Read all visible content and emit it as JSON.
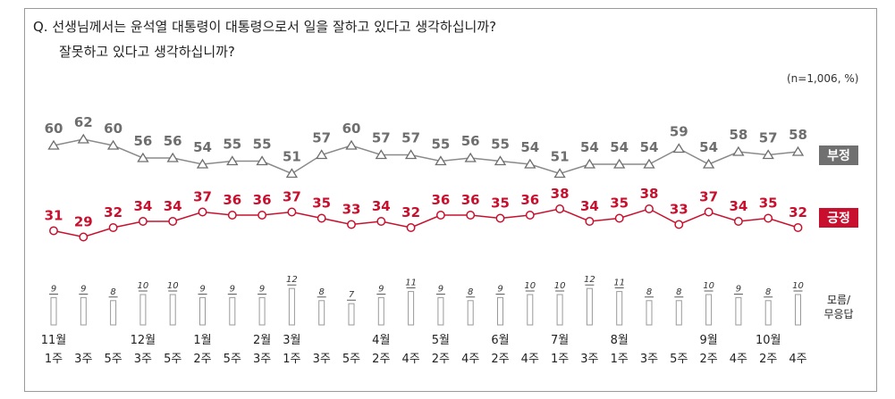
{
  "question": {
    "line1": "Q. 선생님께서는 윤석열 대통령이 대통령으로서 일을 잘하고 있다고 생각하십니까?",
    "line2": "잘못하고 있다고 생각하십니까?"
  },
  "note": "(n=1,006, %)",
  "colors": {
    "negative": "#8a8a8a",
    "positive": "#c8102e",
    "negative_badge": "#707070",
    "positive_badge": "#c8102e"
  },
  "chart_data": {
    "type": "line",
    "categories": [
      [
        "11월",
        "1주"
      ],
      [
        "",
        "3주"
      ],
      [
        "",
        "5주"
      ],
      [
        "12월",
        "3주"
      ],
      [
        "",
        "5주"
      ],
      [
        "1월",
        "2주"
      ],
      [
        "",
        "5주"
      ],
      [
        "2월",
        "3주"
      ],
      [
        "3월",
        "1주"
      ],
      [
        "",
        "3주"
      ],
      [
        "",
        "5주"
      ],
      [
        "4월",
        "2주"
      ],
      [
        "",
        "4주"
      ],
      [
        "5월",
        "2주"
      ],
      [
        "",
        "4주"
      ],
      [
        "6월",
        "2주"
      ],
      [
        "",
        "4주"
      ],
      [
        "7월",
        "1주"
      ],
      [
        "",
        "3주"
      ],
      [
        "8월",
        "1주"
      ],
      [
        "",
        "3주"
      ],
      [
        "",
        "5주"
      ],
      [
        "9월",
        "2주"
      ],
      [
        "",
        "4주"
      ],
      [
        "10월",
        "2주"
      ],
      [
        "",
        "4주"
      ]
    ],
    "series": [
      {
        "name": "부정",
        "values": [
          60,
          62,
          60,
          56,
          56,
          54,
          55,
          55,
          51,
          57,
          60,
          57,
          57,
          55,
          56,
          55,
          54,
          51,
          54,
          54,
          54,
          59,
          54,
          58,
          57,
          58
        ]
      },
      {
        "name": "긍정",
        "values": [
          31,
          29,
          32,
          34,
          34,
          37,
          36,
          36,
          37,
          35,
          33,
          34,
          32,
          36,
          36,
          35,
          36,
          38,
          34,
          35,
          38,
          33,
          37,
          34,
          35,
          32
        ]
      },
      {
        "name": "모름/무응답",
        "values": [
          9,
          9,
          8,
          10,
          10,
          9,
          9,
          9,
          12,
          8,
          7,
          9,
          11,
          9,
          8,
          9,
          10,
          10,
          12,
          11,
          8,
          8,
          10,
          9,
          8,
          10
        ]
      }
    ],
    "legend": {
      "negative": "부정",
      "positive": "긍정",
      "unknown_line1": "모름/",
      "unknown_line2": "무응답"
    }
  }
}
